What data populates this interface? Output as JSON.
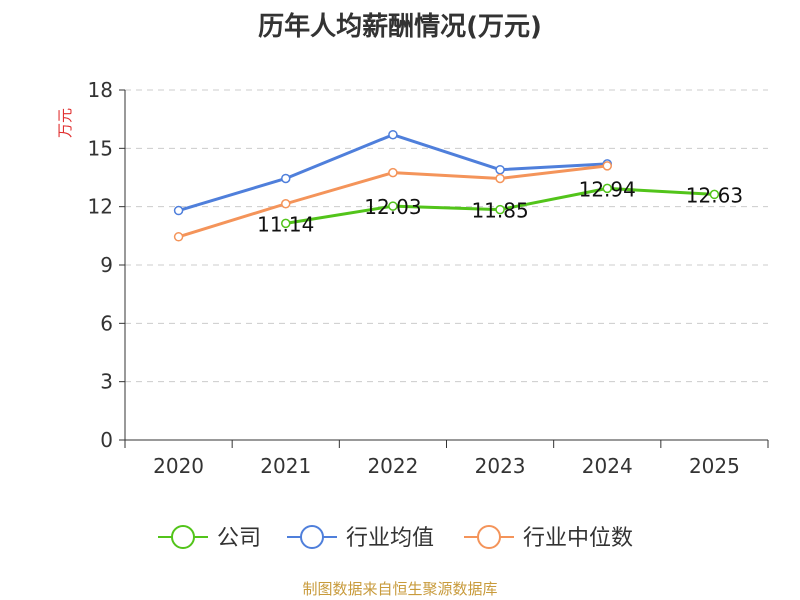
{
  "chart_data": {
    "type": "line",
    "title": "历年人均薪酬情况(万元)",
    "ylabel": "万元",
    "xlabel": "",
    "categories": [
      "2020",
      "2021",
      "2022",
      "2023",
      "2024",
      "2025"
    ],
    "ylim": [
      0,
      18
    ],
    "yticks": [
      0,
      3,
      6,
      9,
      12,
      15,
      18
    ],
    "grid": true,
    "legend_position": "bottom",
    "series": [
      {
        "name": "公司",
        "color": "#52c41a",
        "values": [
          null,
          11.14,
          12.03,
          11.85,
          12.94,
          12.63
        ],
        "show_labels": true
      },
      {
        "name": "行业均值",
        "color": "#4f7fdb",
        "values": [
          11.8,
          13.45,
          15.7,
          13.9,
          14.2,
          null
        ],
        "show_labels": false
      },
      {
        "name": "行业中位数",
        "color": "#f4945a",
        "values": [
          10.45,
          12.15,
          13.75,
          13.45,
          14.1,
          null
        ],
        "show_labels": false
      }
    ]
  },
  "colors": {
    "ylabel": "#e03030",
    "source": "#c89b3c",
    "axis": "#333333",
    "grid": "#cccccc"
  },
  "source_note": "制图数据来自恒生聚源数据库"
}
